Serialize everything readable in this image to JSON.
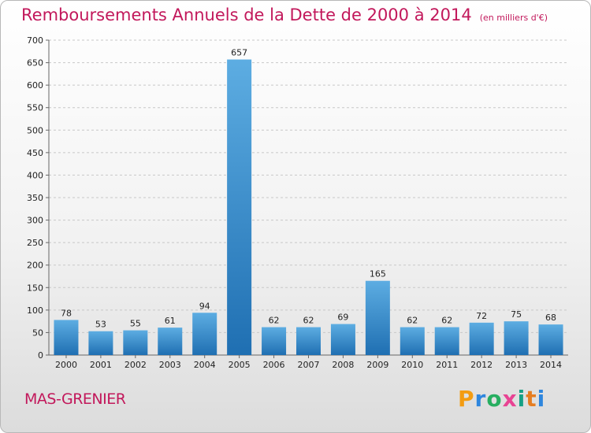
{
  "title": "Remboursements Annuels de la Dette de 2000 à 2014",
  "unit_note": "(en milliers d'€)",
  "place": "MAS-GRENIER",
  "logo": {
    "text": "Proxiti",
    "letters": [
      {
        "ch": "P",
        "color": "#f39c12"
      },
      {
        "ch": "r",
        "color": "#2e86de"
      },
      {
        "ch": "o",
        "color": "#27ae60"
      },
      {
        "ch": "x",
        "color": "#e84393"
      },
      {
        "ch": "i",
        "color": "#16a085"
      },
      {
        "ch": "t",
        "color": "#e67e22"
      },
      {
        "ch": "i",
        "color": "#2e86de"
      }
    ]
  },
  "colors": {
    "title": "#c2185b",
    "bar_top": "#5dade2",
    "bar_bottom": "#1f6fb2",
    "grid": "#c8c8c8",
    "axis_text": "#222222"
  },
  "chart_data": {
    "type": "bar",
    "title": "Remboursements Annuels de la Dette de 2000 à 2014",
    "xlabel": "",
    "ylabel": "",
    "ylim": [
      0,
      700
    ],
    "yticks": [
      0,
      50,
      100,
      150,
      200,
      250,
      300,
      350,
      400,
      450,
      500,
      550,
      600,
      650,
      700
    ],
    "grid": true,
    "categories": [
      "2000",
      "2001",
      "2002",
      "2003",
      "2004",
      "2005",
      "2006",
      "2007",
      "2008",
      "2009",
      "2010",
      "2011",
      "2012",
      "2013",
      "2014"
    ],
    "values": [
      78,
      53,
      55,
      61,
      94,
      657,
      62,
      62,
      69,
      165,
      62,
      62,
      72,
      75,
      68
    ]
  }
}
